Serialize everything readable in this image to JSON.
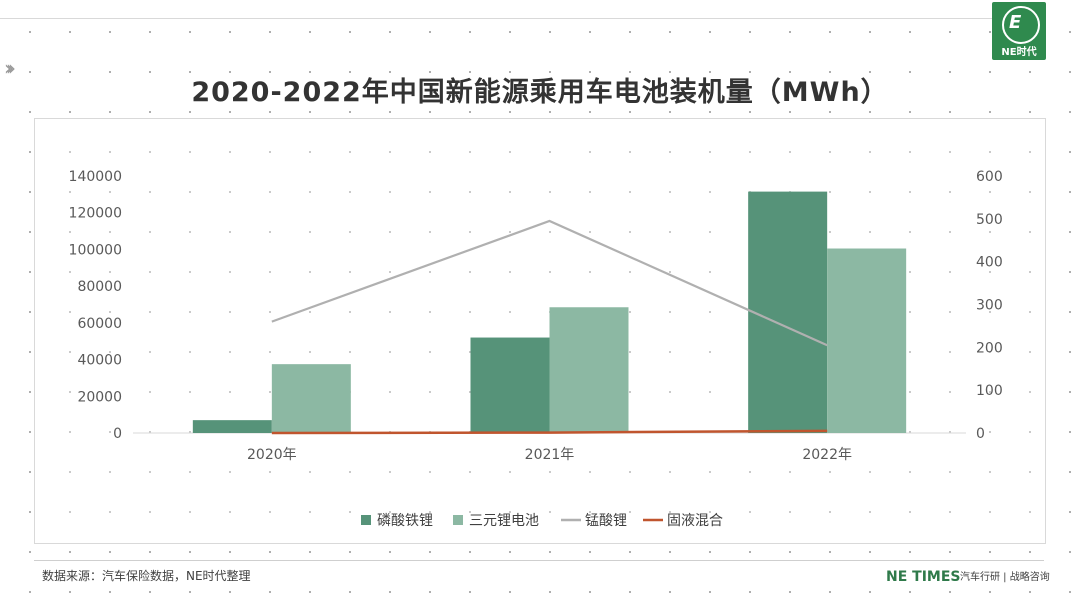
{
  "title": "2020-2022年中国新能源乘用车电池装机量（MWh）",
  "logo": {
    "text": "NE时代",
    "mark": "E"
  },
  "colors": {
    "lfp": "#569379",
    "ncm": "#8cb8a3",
    "lmo": "#b0b0b0",
    "solid": "#c0552e",
    "brand": "#2f8a4e"
  },
  "footer": {
    "source": "数据来源：汽车保险数据，NE时代整理",
    "brand": "NE TIMES",
    "tagline": "汽车行研 | 战略咨询"
  },
  "chart_data": {
    "type": "bar",
    "categories": [
      "2020年",
      "2021年",
      "2022年"
    ],
    "series": [
      {
        "name": "磷酸铁锂",
        "type": "bar",
        "axis": "left",
        "values": [
          7000,
          52000,
          131500
        ]
      },
      {
        "name": "三元锂电池",
        "type": "bar",
        "axis": "left",
        "values": [
          37500,
          68500,
          100500
        ]
      },
      {
        "name": "锰酸锂",
        "type": "line",
        "axis": "right",
        "values": [
          260,
          495,
          205
        ]
      },
      {
        "name": "固液混合",
        "type": "line",
        "axis": "right",
        "values": [
          0,
          1,
          5
        ]
      }
    ],
    "y_left": {
      "min": 0,
      "max": 140000,
      "ticks": [
        "0",
        "20000",
        "40000",
        "60000",
        "80000",
        "100000",
        "120000",
        "140000"
      ]
    },
    "y_right": {
      "min": 0,
      "max": 600,
      "ticks": [
        "0",
        "100",
        "200",
        "300",
        "400",
        "500",
        "600"
      ]
    },
    "legend_position": "bottom",
    "grid": false
  }
}
